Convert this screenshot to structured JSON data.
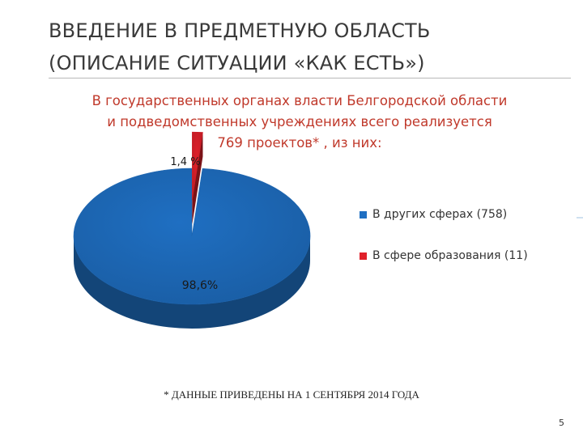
{
  "slide": {
    "title_line1": "ВВЕДЕНИЕ В ПРЕДМЕТНУЮ ОБЛАСТЬ",
    "title_line2": "(ОПИСАНИЕ СИТУАЦИИ «КАК ЕСТЬ»)",
    "footnote": "*  ДАННЫЕ ПРИВЕДЕНЫ НА 1 СЕНТЯБРЯ 2014 ГОДА",
    "page_number": "5"
  },
  "chart_data": {
    "type": "pie",
    "title_lines": [
      "В государственных органах власти Белгородской области",
      "и подведомственных учреждениях всего реализуется",
      "769 проектов* , из них:"
    ],
    "slices": [
      {
        "name": "В других сферах (758)",
        "value": 758,
        "percent_label": "98,6%",
        "color": "#1f6fc2"
      },
      {
        "name": "В сфере образования (11)",
        "value": 11,
        "percent_label": "1,4 %",
        "color": "#e0202a"
      }
    ],
    "legend_position": "right"
  },
  "colors": {
    "title_text": "#3a3a3a",
    "heading_text": "#c0392b",
    "series_blue": "#1f6fc2",
    "series_red": "#e0202a"
  }
}
